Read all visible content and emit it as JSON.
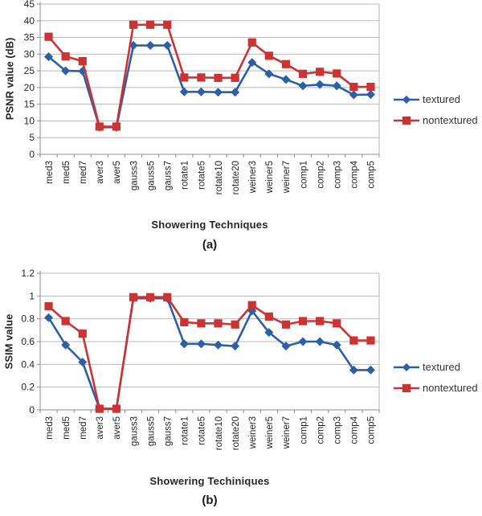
{
  "colors": {
    "textured": "#2B5FA8",
    "nontextured": "#CC3333",
    "grid": "#b9b9b9",
    "axis": "#8c8c8c",
    "text": "#262626"
  },
  "figure": {
    "panel_labels": [
      "(a)",
      "(b)"
    ]
  },
  "chart_data": [
    {
      "type": "line",
      "title": "",
      "xlabel": "Showering Techniques",
      "ylabel": "PSNR value (dB)",
      "ylim": [
        0,
        45
      ],
      "ytick_step": 5,
      "grid": true,
      "legend_position": "right",
      "categories": [
        "med3",
        "med5",
        "med7",
        "aver3",
        "aver5",
        "gauss3",
        "gauss5",
        "gauss7",
        "rotate1",
        "rotate5",
        "rotate10",
        "rotate20",
        "weiner3",
        "weiner5",
        "weiner7",
        "comp1",
        "comp2",
        "comp3",
        "comp4",
        "comp5"
      ],
      "series": [
        {
          "name": "textured",
          "marker": "diamond",
          "color": "#2B5FA8",
          "values": [
            29.2,
            25.0,
            24.9,
            8.1,
            8.1,
            32.6,
            32.6,
            32.6,
            18.7,
            18.7,
            18.6,
            18.6,
            27.5,
            24.1,
            22.4,
            20.5,
            20.9,
            20.5,
            17.8,
            17.9
          ]
        },
        {
          "name": "nontextured",
          "marker": "square",
          "color": "#CC3333",
          "values": [
            35.2,
            29.3,
            27.9,
            8.3,
            8.3,
            38.8,
            38.8,
            38.8,
            23.0,
            23.0,
            22.9,
            22.9,
            33.5,
            29.5,
            27.0,
            24.1,
            24.7,
            24.2,
            20.2,
            20.2
          ]
        }
      ]
    },
    {
      "type": "line",
      "title": "",
      "xlabel": "Showering Techiniques",
      "ylabel": "SSIM value",
      "ylim": [
        0,
        1.2
      ],
      "ytick_step": 0.2,
      "grid": true,
      "legend_position": "right",
      "categories": [
        "med3",
        "med5",
        "med7",
        "aver3",
        "aver5",
        "gauss3",
        "gauss5",
        "gauss7",
        "rotate1",
        "rotate5",
        "rotate10",
        "rotate20",
        "weiner3",
        "weiner5",
        "weiner7",
        "comp1",
        "comp2",
        "comp3",
        "comp4",
        "comp5"
      ],
      "series": [
        {
          "name": "textured",
          "marker": "diamond",
          "color": "#2B5FA8",
          "values": [
            0.81,
            0.57,
            0.42,
            0.01,
            0.01,
            0.98,
            0.98,
            0.98,
            0.58,
            0.58,
            0.57,
            0.56,
            0.87,
            0.68,
            0.56,
            0.6,
            0.6,
            0.57,
            0.35,
            0.35
          ]
        },
        {
          "name": "nontextured",
          "marker": "square",
          "color": "#CC3333",
          "values": [
            0.91,
            0.78,
            0.67,
            0.01,
            0.01,
            0.99,
            0.99,
            0.99,
            0.77,
            0.76,
            0.76,
            0.75,
            0.92,
            0.82,
            0.75,
            0.78,
            0.78,
            0.76,
            0.61,
            0.61
          ]
        }
      ]
    }
  ]
}
